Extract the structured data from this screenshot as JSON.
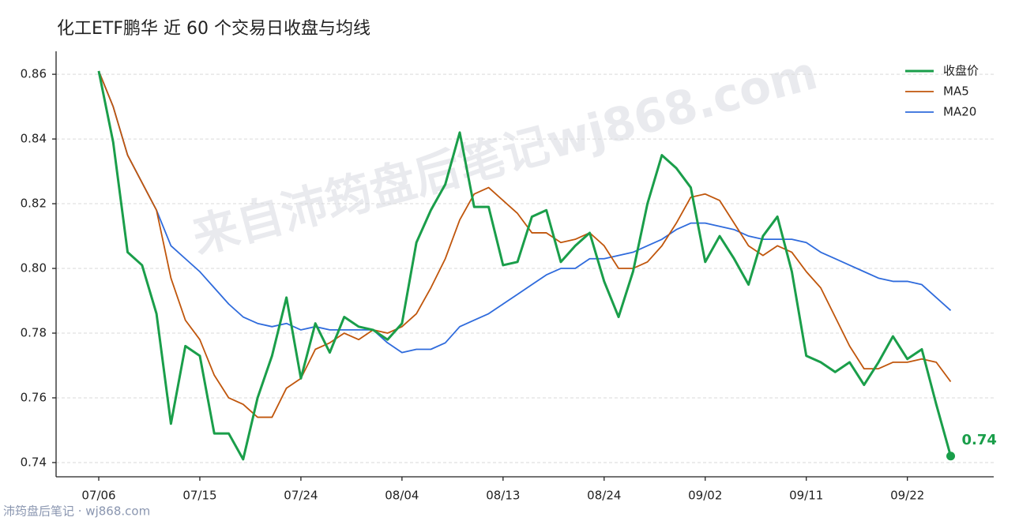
{
  "chart_data": {
    "type": "line",
    "title": "化工ETF鹏华 近 60 个交易日收盘与均线",
    "watermark": "来自沛筠盘后笔记wj868.com",
    "footer": "沛筠盘后笔记 · wj868.com",
    "categories": [
      "07/06",
      null,
      null,
      null,
      null,
      null,
      null,
      "07/15",
      null,
      null,
      null,
      null,
      null,
      null,
      "07/24",
      null,
      null,
      null,
      null,
      null,
      null,
      "08/04",
      null,
      null,
      null,
      null,
      null,
      null,
      "08/13",
      null,
      null,
      null,
      null,
      null,
      null,
      "08/24",
      null,
      null,
      null,
      null,
      null,
      null,
      "09/02",
      null,
      null,
      null,
      null,
      null,
      null,
      "09/11",
      null,
      null,
      null,
      null,
      null,
      null,
      "09/22",
      null,
      null,
      null
    ],
    "series": [
      {
        "name": "收盘价",
        "color": "#1a9e4a",
        "values": [
          0.861,
          0.839,
          0.805,
          0.801,
          0.786,
          0.752,
          0.776,
          0.773,
          0.749,
          0.749,
          0.741,
          0.76,
          0.773,
          0.791,
          0.766,
          0.783,
          0.774,
          0.785,
          0.782,
          0.781,
          0.778,
          0.783,
          0.808,
          0.818,
          0.826,
          0.842,
          0.819,
          0.819,
          0.801,
          0.802,
          0.816,
          0.818,
          0.802,
          0.807,
          0.811,
          0.796,
          0.785,
          0.799,
          0.82,
          0.835,
          0.831,
          0.825,
          0.802,
          0.81,
          0.803,
          0.795,
          0.81,
          0.816,
          0.799,
          0.773,
          0.771,
          0.768,
          0.771,
          0.764,
          0.771,
          0.779,
          0.772,
          0.775,
          0.758,
          0.742
        ]
      },
      {
        "name": "MA5",
        "color": "#c0560c",
        "values": [
          0.861,
          0.85,
          0.835,
          0.8265,
          0.818,
          0.797,
          0.784,
          0.778,
          0.767,
          0.76,
          0.758,
          0.754,
          0.754,
          0.763,
          0.766,
          0.775,
          0.777,
          0.78,
          0.778,
          0.781,
          0.78,
          0.782,
          0.786,
          0.794,
          0.803,
          0.815,
          0.823,
          0.825,
          0.821,
          0.817,
          0.811,
          0.811,
          0.808,
          0.809,
          0.811,
          0.807,
          0.8,
          0.8,
          0.802,
          0.807,
          0.814,
          0.822,
          0.823,
          0.821,
          0.814,
          0.807,
          0.804,
          0.807,
          0.805,
          0.799,
          0.794,
          0.785,
          0.776,
          0.769,
          0.769,
          0.771,
          0.771,
          0.772,
          0.771,
          0.765
        ]
      },
      {
        "name": "MA20",
        "color": "#2f6bdc",
        "values": [
          0.861,
          0.85,
          0.835,
          0.8265,
          0.818,
          0.807,
          0.803,
          0.799,
          0.794,
          0.789,
          0.785,
          0.783,
          0.782,
          0.783,
          0.781,
          0.782,
          0.781,
          0.781,
          0.781,
          0.781,
          0.777,
          0.774,
          0.775,
          0.775,
          0.777,
          0.782,
          0.784,
          0.786,
          0.789,
          0.792,
          0.795,
          0.798,
          0.8,
          0.8,
          0.803,
          0.803,
          0.804,
          0.805,
          0.807,
          0.809,
          0.812,
          0.814,
          0.814,
          0.813,
          0.812,
          0.81,
          0.809,
          0.809,
          0.809,
          0.808,
          0.805,
          0.803,
          0.801,
          0.799,
          0.797,
          0.796,
          0.796,
          0.795,
          0.791,
          0.787
        ]
      }
    ],
    "annotations": [
      {
        "text": "0.74",
        "series": 0,
        "index": 59
      }
    ],
    "ylim": [
      0.7356,
      0.8671
    ],
    "yticks": [
      {
        "value": 0.74,
        "label": "0.74"
      },
      {
        "value": 0.76,
        "label": "0.76"
      },
      {
        "value": 0.78,
        "label": "0.78"
      },
      {
        "value": 0.8,
        "label": "0.80"
      },
      {
        "value": 0.82,
        "label": "0.82"
      },
      {
        "value": 0.84,
        "label": "0.84"
      },
      {
        "value": 0.86,
        "label": "0.86"
      }
    ],
    "grid": true,
    "legend": "upper right"
  }
}
